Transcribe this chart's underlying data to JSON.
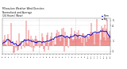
{
  "title_line1": "Milwaukee Weather Wind Direction",
  "title_line2": "Normalized and Average",
  "title_line3": "(24 Hours) (New)",
  "background_color": "#ffffff",
  "plot_bg_color": "#ffffff",
  "grid_color": "#aaaaaa",
  "bar_color": "#dd0000",
  "avg_line_color": "#0000cc",
  "ylim": [
    -1.5,
    5.5
  ],
  "xlim": [
    0,
    129
  ],
  "legend_label1": "Norm",
  "legend_label2": "Avg",
  "legend_color1": "#0000cc",
  "legend_color2": "#dd0000",
  "num_points": 130,
  "seed": 42,
  "yticks": [
    5,
    4,
    1,
    -1
  ],
  "ytick_labels": [
    "5",
    "4",
    "1",
    "-1"
  ]
}
